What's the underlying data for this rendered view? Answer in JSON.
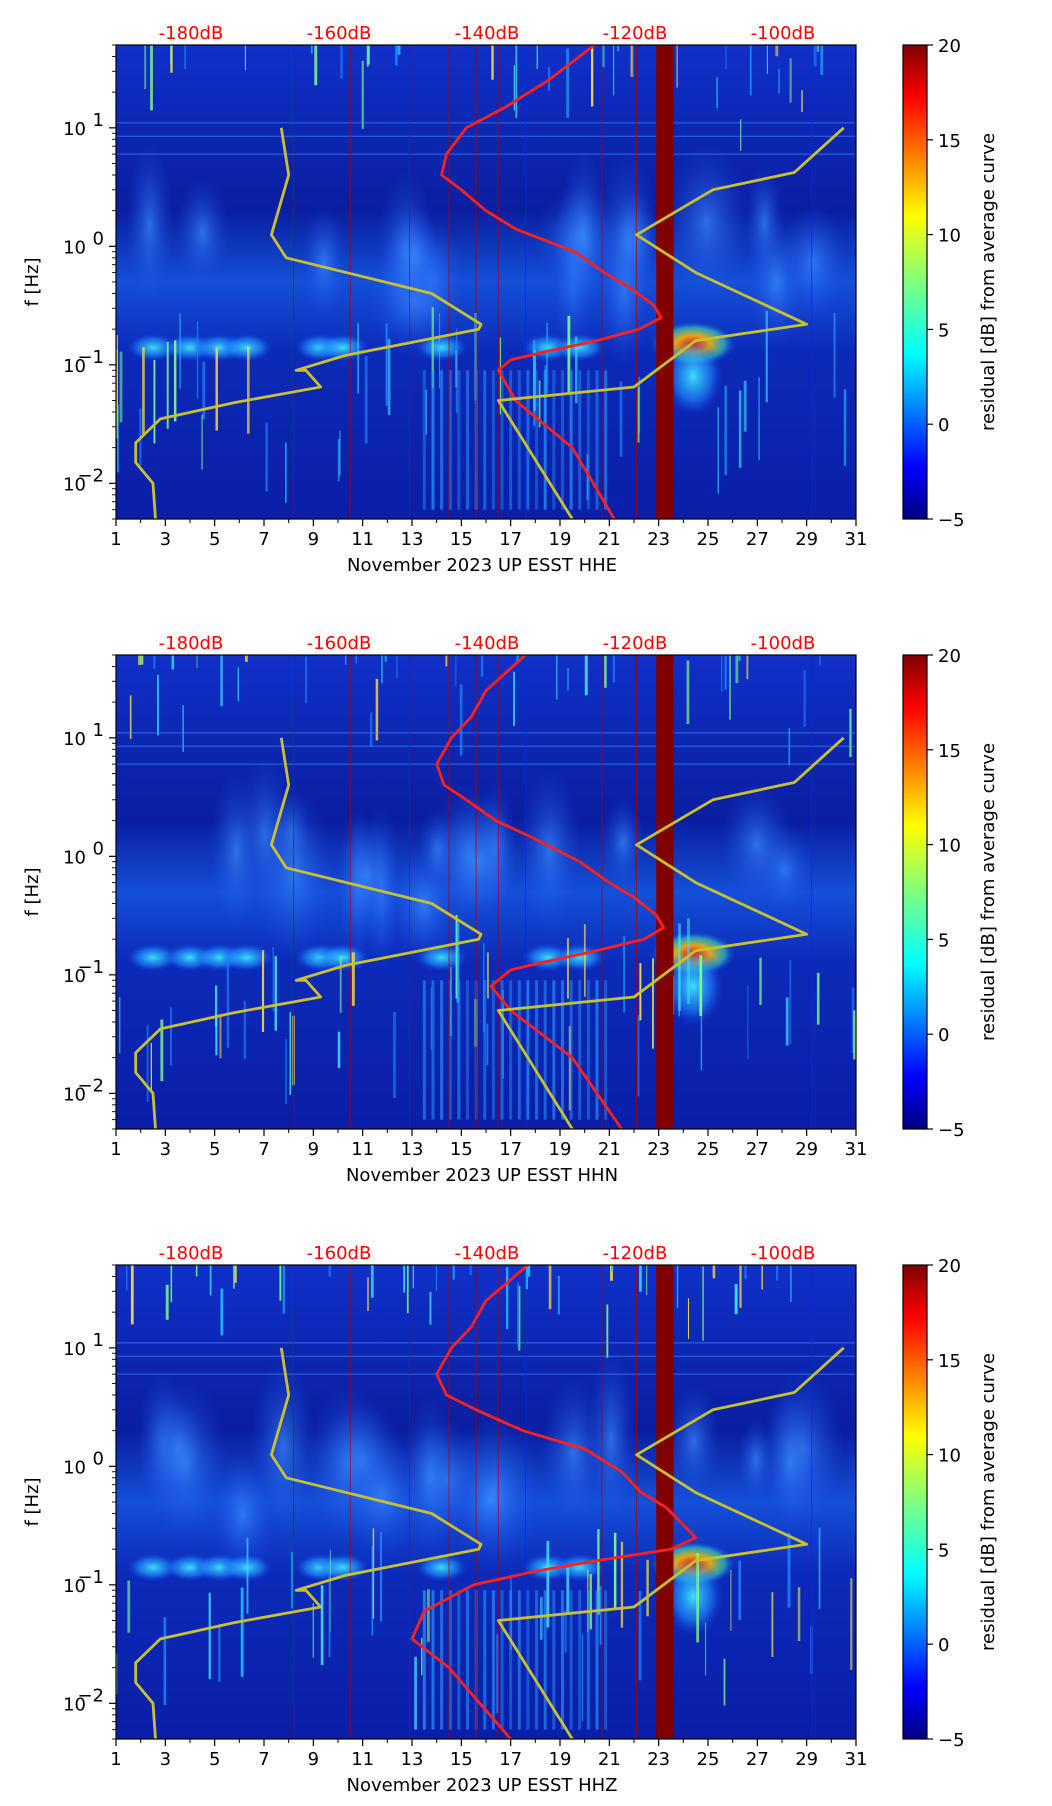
{
  "chart_data": [
    {
      "type": "heatmap",
      "channel": "HHE",
      "xlabel": "November 2023 UP ESST  HHE",
      "ylabel": "f [Hz]",
      "x_ticks": [
        "1",
        "3",
        "5",
        "7",
        "9",
        "11",
        "13",
        "15",
        "17",
        "19",
        "21",
        "23",
        "25",
        "27",
        "29",
        "31"
      ],
      "xlim": [
        1,
        31
      ],
      "y_ticks": [
        {
          "base": "10",
          "exp": "1"
        },
        {
          "base": "10",
          "exp": "0"
        },
        {
          "base": "10",
          "exp": "−1"
        },
        {
          "base": "10",
          "exp": "−2"
        }
      ],
      "ylim_hz": [
        0.005,
        50
      ],
      "db_scale_labels": [
        "-180dB",
        "-160dB",
        "-140dB",
        "-120dB",
        "-100dB"
      ],
      "colorbar": {
        "label": "residual [dB] from average curve",
        "ticks": [
          "20",
          "15",
          "10",
          "5",
          "0",
          "−5"
        ],
        "range": [
          -5,
          20
        ]
      },
      "gap_band_days": [
        22.9,
        23.6
      ],
      "series": [
        {
          "name": "noise model (yellow)",
          "color": "#c8c030",
          "points": [
            [
              7.7,
              10
            ],
            [
              8.0,
              4
            ],
            [
              7.3,
              1.25
            ],
            [
              7.9,
              0.8
            ],
            [
              13.8,
              0.4
            ],
            [
              15.8,
              0.22
            ],
            [
              15.7,
              0.2
            ],
            [
              10.3,
              0.12
            ],
            [
              8.3,
              0.09
            ],
            [
              8.7,
              0.09
            ],
            [
              9.3,
              0.065
            ],
            [
              5.8,
              0.048
            ],
            [
              2.8,
              0.035
            ],
            [
              1.8,
              0.022
            ],
            [
              1.8,
              0.015
            ],
            [
              2.5,
              0.01
            ],
            [
              2.6,
              0.005
            ]
          ]
        },
        {
          "name": "average curve (red)",
          "color": "#ff2020",
          "points": [
            [
              20.4,
              50
            ],
            [
              18.5,
              25
            ],
            [
              16.8,
              15
            ],
            [
              15.2,
              10
            ],
            [
              14.4,
              6
            ],
            [
              14.2,
              4
            ],
            [
              15.0,
              3
            ],
            [
              16.0,
              2
            ],
            [
              17.2,
              1.4
            ],
            [
              19.6,
              0.9
            ],
            [
              20.8,
              0.6
            ],
            [
              21.8,
              0.45
            ],
            [
              22.8,
              0.32
            ],
            [
              23.1,
              0.25
            ],
            [
              22.2,
              0.2
            ],
            [
              20.5,
              0.16
            ],
            [
              18.5,
              0.13
            ],
            [
              17.0,
              0.11
            ],
            [
              16.5,
              0.09
            ],
            [
              17.2,
              0.05
            ],
            [
              19.5,
              0.02
            ],
            [
              21.2,
              0.005
            ]
          ]
        },
        {
          "name": "noise model (yellow, right)",
          "color": "#c8c030",
          "points": [
            [
              30.5,
              10
            ],
            [
              28.5,
              4.2
            ],
            [
              25.2,
              3
            ],
            [
              22.1,
              1.25
            ],
            [
              24.5,
              0.6
            ],
            [
              29,
              0.22
            ],
            [
              24.5,
              0.16
            ],
            [
              22,
              0.065
            ],
            [
              16.5,
              0.05
            ],
            [
              19.5,
              0.005
            ]
          ]
        }
      ]
    },
    {
      "type": "heatmap",
      "channel": "HHN",
      "xlabel": "November 2023 UP ESST  HHN",
      "ylabel": "f [Hz]",
      "x_ticks": [
        "1",
        "3",
        "5",
        "7",
        "9",
        "11",
        "13",
        "15",
        "17",
        "19",
        "21",
        "23",
        "25",
        "27",
        "29",
        "31"
      ],
      "xlim": [
        1,
        31
      ],
      "y_ticks": [
        {
          "base": "10",
          "exp": "1"
        },
        {
          "base": "10",
          "exp": "0"
        },
        {
          "base": "10",
          "exp": "−1"
        },
        {
          "base": "10",
          "exp": "−2"
        }
      ],
      "ylim_hz": [
        0.005,
        50
      ],
      "db_scale_labels": [
        "-180dB",
        "-160dB",
        "-140dB",
        "-120dB",
        "-100dB"
      ],
      "colorbar": {
        "label": "residual [dB] from average curve",
        "ticks": [
          "20",
          "15",
          "10",
          "5",
          "0",
          "−5"
        ],
        "range": [
          -5,
          20
        ]
      },
      "gap_band_days": [
        22.9,
        23.6
      ],
      "series": [
        {
          "name": "noise model (yellow)",
          "color": "#c8c030",
          "points": [
            [
              7.7,
              10
            ],
            [
              8.0,
              4
            ],
            [
              7.3,
              1.25
            ],
            [
              7.9,
              0.8
            ],
            [
              13.8,
              0.4
            ],
            [
              15.8,
              0.22
            ],
            [
              15.7,
              0.2
            ],
            [
              10.3,
              0.12
            ],
            [
              8.3,
              0.09
            ],
            [
              8.7,
              0.09
            ],
            [
              9.3,
              0.065
            ],
            [
              5.8,
              0.048
            ],
            [
              2.8,
              0.035
            ],
            [
              1.8,
              0.022
            ],
            [
              1.8,
              0.015
            ],
            [
              2.5,
              0.01
            ],
            [
              2.6,
              0.005
            ]
          ]
        },
        {
          "name": "average curve (red)",
          "color": "#ff2020",
          "points": [
            [
              17.6,
              50
            ],
            [
              16.0,
              25
            ],
            [
              15.4,
              15
            ],
            [
              14.6,
              10
            ],
            [
              14.0,
              6
            ],
            [
              14.3,
              4
            ],
            [
              15.2,
              3
            ],
            [
              16.4,
              2
            ],
            [
              18.0,
              1.4
            ],
            [
              19.8,
              0.9
            ],
            [
              21.0,
              0.6
            ],
            [
              22.0,
              0.45
            ],
            [
              22.9,
              0.32
            ],
            [
              23.2,
              0.25
            ],
            [
              22.4,
              0.2
            ],
            [
              20.5,
              0.16
            ],
            [
              18.5,
              0.13
            ],
            [
              17.0,
              0.11
            ],
            [
              16.2,
              0.08
            ],
            [
              17.0,
              0.05
            ],
            [
              19.5,
              0.02
            ],
            [
              21.5,
              0.005
            ]
          ]
        },
        {
          "name": "noise model (yellow, right)",
          "color": "#c8c030",
          "points": [
            [
              30.5,
              10
            ],
            [
              28.5,
              4.2
            ],
            [
              25.2,
              3
            ],
            [
              22.1,
              1.25
            ],
            [
              24.5,
              0.6
            ],
            [
              29,
              0.22
            ],
            [
              24.5,
              0.16
            ],
            [
              22,
              0.065
            ],
            [
              16.5,
              0.05
            ],
            [
              19.5,
              0.005
            ]
          ]
        }
      ]
    },
    {
      "type": "heatmap",
      "channel": "HHZ",
      "xlabel": "November 2023 UP ESST  HHZ",
      "ylabel": "f [Hz]",
      "x_ticks": [
        "1",
        "3",
        "5",
        "7",
        "9",
        "11",
        "13",
        "15",
        "17",
        "19",
        "21",
        "23",
        "25",
        "27",
        "29",
        "31"
      ],
      "xlim": [
        1,
        31
      ],
      "y_ticks": [
        {
          "base": "10",
          "exp": "1"
        },
        {
          "base": "10",
          "exp": "0"
        },
        {
          "base": "10",
          "exp": "−1"
        },
        {
          "base": "10",
          "exp": "−2"
        }
      ],
      "ylim_hz": [
        0.005,
        50
      ],
      "db_scale_labels": [
        "-180dB",
        "-160dB",
        "-140dB",
        "-120dB",
        "-100dB"
      ],
      "colorbar": {
        "label": "residual [dB] from average curve",
        "ticks": [
          "20",
          "15",
          "10",
          "5",
          "0",
          "−5"
        ],
        "range": [
          -5,
          20
        ]
      },
      "gap_band_days": [
        22.9,
        23.6
      ],
      "series": [
        {
          "name": "noise model (yellow)",
          "color": "#c8c030",
          "points": [
            [
              7.7,
              10
            ],
            [
              8.0,
              4
            ],
            [
              7.3,
              1.25
            ],
            [
              7.9,
              0.8
            ],
            [
              13.8,
              0.4
            ],
            [
              15.8,
              0.22
            ],
            [
              15.7,
              0.2
            ],
            [
              10.3,
              0.12
            ],
            [
              8.3,
              0.09
            ],
            [
              8.7,
              0.09
            ],
            [
              9.3,
              0.065
            ],
            [
              5.8,
              0.048
            ],
            [
              2.8,
              0.035
            ],
            [
              1.8,
              0.022
            ],
            [
              1.8,
              0.015
            ],
            [
              2.5,
              0.01
            ],
            [
              2.6,
              0.005
            ]
          ]
        },
        {
          "name": "average curve (red)",
          "color": "#ff2020",
          "points": [
            [
              17.7,
              50
            ],
            [
              16.0,
              25
            ],
            [
              15.4,
              15
            ],
            [
              14.6,
              10
            ],
            [
              14.0,
              6
            ],
            [
              14.4,
              4
            ],
            [
              15.6,
              3
            ],
            [
              17.5,
              2
            ],
            [
              20.0,
              1.4
            ],
            [
              21.5,
              0.9
            ],
            [
              22.3,
              0.6
            ],
            [
              23.3,
              0.45
            ],
            [
              24.0,
              0.32
            ],
            [
              24.5,
              0.25
            ],
            [
              23.5,
              0.2
            ],
            [
              20.5,
              0.16
            ],
            [
              18.0,
              0.13
            ],
            [
              15.5,
              0.1
            ],
            [
              13.5,
              0.06
            ],
            [
              13.0,
              0.035
            ],
            [
              14.5,
              0.02
            ],
            [
              17.0,
              0.005
            ]
          ]
        },
        {
          "name": "noise model (yellow, right)",
          "color": "#c8c030",
          "points": [
            [
              30.5,
              10
            ],
            [
              28.5,
              4.2
            ],
            [
              25.2,
              3
            ],
            [
              22.1,
              1.25
            ],
            [
              24.5,
              0.6
            ],
            [
              29,
              0.22
            ],
            [
              24.5,
              0.16
            ],
            [
              22,
              0.065
            ],
            [
              16.5,
              0.05
            ],
            [
              19.5,
              0.005
            ]
          ]
        }
      ]
    }
  ]
}
